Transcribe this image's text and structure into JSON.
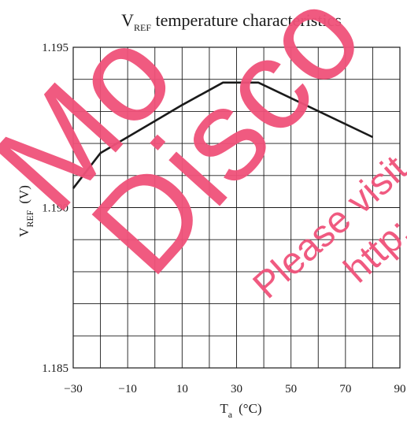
{
  "chart_data": {
    "type": "line",
    "title_main": "V",
    "title_sub": "REF",
    "title_rest": " temperature characteristics",
    "xlabel_main": "T",
    "xlabel_sub": "a",
    "xlabel_unit": "(°C)",
    "ylabel_main": "V",
    "ylabel_sub": "REF",
    "ylabel_unit": "(V)",
    "xlim": [
      -30,
      90
    ],
    "ylim": [
      1.185,
      1.195
    ],
    "x_ticks": [
      -30,
      -10,
      10,
      30,
      50,
      70,
      90
    ],
    "x_tick_labels": [
      "−30",
      "−10",
      "10",
      "30",
      "50",
      "70",
      "90"
    ],
    "y_ticks": [
      1.185,
      1.19,
      1.195
    ],
    "y_tick_labels": [
      "1.185",
      "1.190",
      "1.195"
    ],
    "grid": true,
    "x_grid_step": 10,
    "y_grid_step": 0.001,
    "series": [
      {
        "x": [
          -30,
          -20,
          0,
          10,
          25,
          38,
          80
        ],
        "y": [
          1.1906,
          1.1917,
          1.1927,
          1.1932,
          1.1939,
          1.1939,
          1.1922
        ],
        "color": "#1a1a1a"
      }
    ]
  },
  "watermark": {
    "line1": "Mo",
    "line2": "Disco",
    "line3": "Please visit",
    "line4": "http:",
    "color": "#f0527a"
  }
}
